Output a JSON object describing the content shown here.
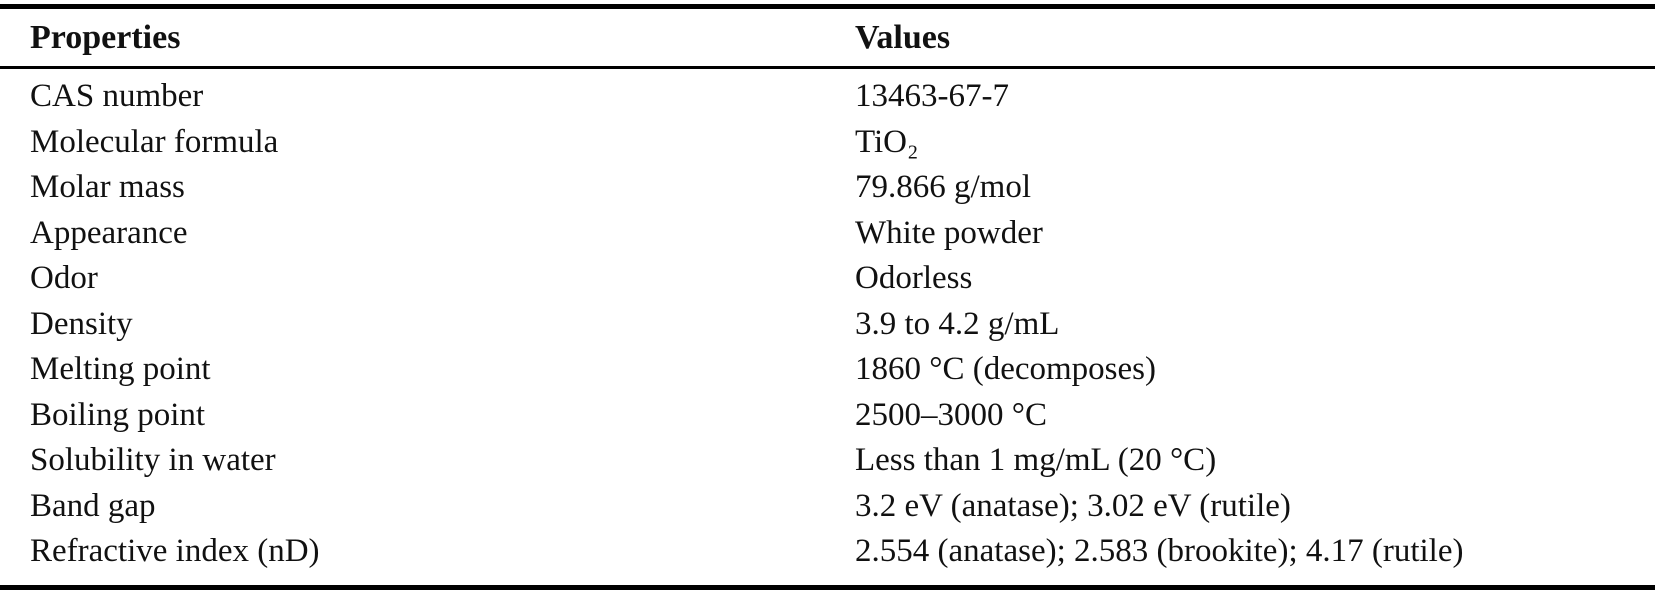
{
  "table": {
    "columns": [
      "Properties",
      "Values"
    ],
    "rows": [
      {
        "property": "CAS number",
        "value": "13463-67-7"
      },
      {
        "property": "Molecular formula",
        "value": "TiO₂"
      },
      {
        "property": "Molar mass",
        "value": "79.866 g/mol"
      },
      {
        "property": "Appearance",
        "value": "White powder"
      },
      {
        "property": "Odor",
        "value": "Odorless"
      },
      {
        "property": "Density",
        "value": "3.9 to 4.2 g/mL"
      },
      {
        "property": "Melting point",
        "value": "1860 °C (decomposes)"
      },
      {
        "property": "Boiling point",
        "value": "2500–3000 °C"
      },
      {
        "property": "Solubility in water",
        "value": "Less than 1 mg/mL (20 °C)"
      },
      {
        "property": "Band gap",
        "value": "3.2 eV (anatase); 3.02 eV (rutile)"
      },
      {
        "property": "Refractive index (nD)",
        "value": "2.554 (anatase); 2.583 (brookite); 4.17 (rutile)"
      }
    ]
  },
  "colors": {
    "text": "#111111",
    "rule": "#000000",
    "background": "#ffffff"
  }
}
